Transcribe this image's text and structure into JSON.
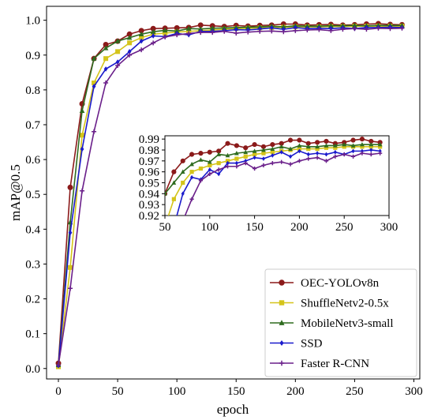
{
  "chart_data": {
    "type": "line",
    "title": "",
    "xlabel": "epoch",
    "ylabel": "mAP@0.5",
    "xlim": [
      -10,
      305
    ],
    "ylim": [
      -0.03,
      1.04
    ],
    "xticks": [
      0,
      50,
      100,
      150,
      200,
      250,
      300
    ],
    "yticks": [
      0.0,
      0.1,
      0.2,
      0.3,
      0.4,
      0.5,
      0.6,
      0.7,
      0.8,
      0.9,
      1.0
    ],
    "xtick_labels": [
      "0",
      "50",
      "100",
      "150",
      "200",
      "250",
      "300"
    ],
    "ytick_labels": [
      "0.0",
      "0.1",
      "0.2",
      "0.3",
      "0.4",
      "0.5",
      "0.6",
      "0.7",
      "0.8",
      "0.9",
      "1.0"
    ],
    "grid": false,
    "legend_position": "lower-right",
    "x": [
      0,
      10,
      20,
      30,
      40,
      50,
      60,
      70,
      80,
      90,
      100,
      110,
      120,
      130,
      140,
      150,
      160,
      170,
      180,
      190,
      200,
      210,
      220,
      230,
      240,
      250,
      260,
      270,
      280,
      290
    ],
    "series": [
      {
        "name": "OEC-YOLOv8n",
        "color": "#8b1a1a",
        "marker": "circle",
        "values": [
          0.015,
          0.52,
          0.76,
          0.89,
          0.93,
          0.94,
          0.96,
          0.97,
          0.976,
          0.977,
          0.978,
          0.979,
          0.986,
          0.984,
          0.982,
          0.985,
          0.983,
          0.985,
          0.986,
          0.989,
          0.989,
          0.986,
          0.987,
          0.988,
          0.986,
          0.987,
          0.989,
          0.99,
          0.988,
          0.987
        ]
      },
      {
        "name": "ShuffleNetv2-0.5x",
        "color": "#d4c41a",
        "marker": "square",
        "values": [
          0.005,
          0.29,
          0.67,
          0.82,
          0.89,
          0.91,
          0.935,
          0.95,
          0.96,
          0.963,
          0.966,
          0.968,
          0.97,
          0.972,
          0.974,
          0.976,
          0.977,
          0.978,
          0.979,
          0.98,
          0.981,
          0.981,
          0.981,
          0.982,
          0.982,
          0.983,
          0.983,
          0.983,
          0.983,
          0.983
        ]
      },
      {
        "name": "MobileNetv3-small",
        "color": "#2e6b1f",
        "marker": "triangle",
        "values": [
          0.01,
          0.42,
          0.74,
          0.89,
          0.92,
          0.94,
          0.95,
          0.96,
          0.967,
          0.971,
          0.969,
          0.976,
          0.975,
          0.977,
          0.978,
          0.979,
          0.98,
          0.981,
          0.983,
          0.981,
          0.984,
          0.983,
          0.983,
          0.984,
          0.984,
          0.985,
          0.984,
          0.985,
          0.985,
          0.985
        ]
      },
      {
        "name": "SSD",
        "color": "#1a1acc",
        "marker": "diamond",
        "values": [
          0.008,
          0.39,
          0.63,
          0.81,
          0.86,
          0.88,
          0.91,
          0.94,
          0.955,
          0.953,
          0.962,
          0.958,
          0.968,
          0.968,
          0.97,
          0.973,
          0.972,
          0.975,
          0.978,
          0.974,
          0.979,
          0.976,
          0.977,
          0.976,
          0.978,
          0.976,
          0.979,
          0.979,
          0.98,
          0.979
        ]
      },
      {
        "name": "Faster R-CNN",
        "color": "#6a1f8a",
        "marker": "plus",
        "values": [
          0.01,
          0.23,
          0.51,
          0.68,
          0.82,
          0.87,
          0.9,
          0.915,
          0.935,
          0.952,
          0.958,
          0.962,
          0.965,
          0.965,
          0.968,
          0.963,
          0.966,
          0.968,
          0.969,
          0.967,
          0.97,
          0.972,
          0.973,
          0.97,
          0.974,
          0.976,
          0.974,
          0.977,
          0.976,
          0.977
        ]
      }
    ],
    "inset": {
      "xlim": [
        50,
        300
      ],
      "ylim": [
        0.92,
        0.993
      ],
      "xticks": [
        50,
        100,
        150,
        200,
        250,
        300
      ],
      "yticks": [
        0.92,
        0.93,
        0.94,
        0.95,
        0.96,
        0.97,
        0.98,
        0.99
      ],
      "xtick_labels": [
        "50",
        "100",
        "150",
        "200",
        "250",
        "300"
      ],
      "ytick_labels": [
        "0.92",
        "0.93",
        "0.94",
        "0.95",
        "0.96",
        "0.97",
        "0.98",
        "0.99"
      ]
    }
  }
}
